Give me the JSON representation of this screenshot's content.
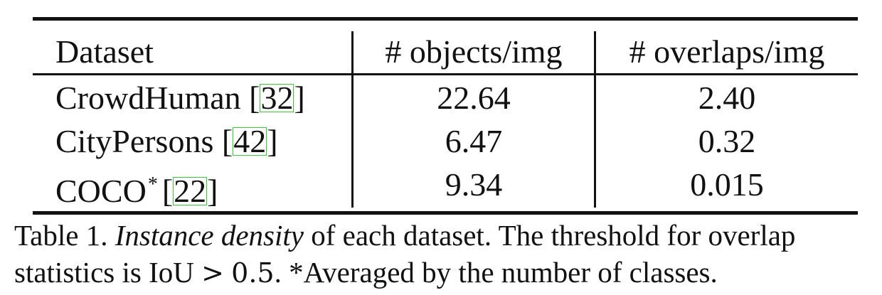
{
  "table": {
    "headers": [
      "Dataset",
      "# objects/img",
      "# overlaps/img"
    ],
    "rows": [
      {
        "name": "CrowdHuman",
        "cite": "32",
        "asterisk": "",
        "objects": "22.64",
        "overlaps": "2.40"
      },
      {
        "name": "CityPersons",
        "cite": "42",
        "asterisk": "",
        "objects": "6.47",
        "overlaps": "0.32"
      },
      {
        "name": "COCO",
        "cite": "22",
        "asterisk": "*",
        "objects": "9.34",
        "overlaps": "0.015"
      }
    ],
    "bracket_open": "[",
    "bracket_close": "]"
  },
  "caption": {
    "label": "Table 1.",
    "italic": "Instance density",
    "line1_rest": " of each dataset. The threshold for overlap",
    "line2_start": "statistics is IoU",
    "math_op": ">",
    "math_val": "0.5",
    "line2_rest": ". *Averaged by the number of classes."
  }
}
